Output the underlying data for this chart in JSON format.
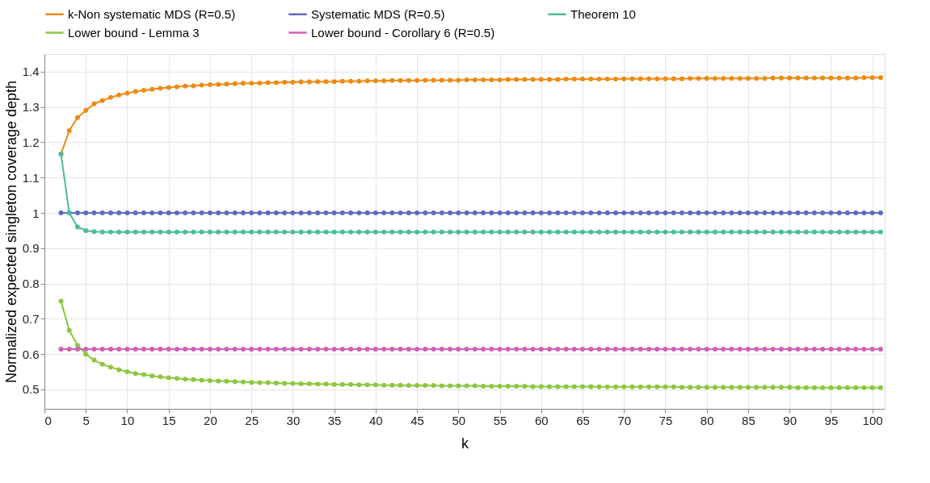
{
  "chart_data": {
    "type": "line",
    "xlabel": "k",
    "ylabel": "Normalized expected singleton coverage depth",
    "x": [
      2,
      3,
      4,
      5,
      6,
      7,
      8,
      9,
      10,
      11,
      12,
      13,
      14,
      15,
      16,
      17,
      18,
      19,
      20,
      21,
      22,
      23,
      24,
      25,
      26,
      27,
      28,
      29,
      30,
      31,
      32,
      33,
      34,
      35,
      36,
      37,
      38,
      39,
      40,
      41,
      42,
      43,
      44,
      45,
      46,
      47,
      48,
      49,
      50,
      51,
      52,
      53,
      54,
      55,
      56,
      57,
      58,
      59,
      60,
      61,
      62,
      63,
      64,
      65,
      66,
      67,
      68,
      69,
      70,
      71,
      72,
      73,
      74,
      75,
      76,
      77,
      78,
      79,
      80,
      81,
      82,
      83,
      84,
      85,
      86,
      87,
      88,
      89,
      90,
      91,
      92,
      93,
      94,
      95,
      96,
      97,
      98,
      99,
      100,
      101
    ],
    "series": [
      {
        "name": "k-Non systematic MDS (R=0.5)",
        "color": "#ee8a12",
        "values": [
          1.167,
          1.233,
          1.27,
          1.29,
          1.309,
          1.318,
          1.327,
          1.334,
          1.339,
          1.344,
          1.347,
          1.35,
          1.353,
          1.355,
          1.357,
          1.359,
          1.36,
          1.362,
          1.363,
          1.364,
          1.365,
          1.366,
          1.367,
          1.367,
          1.368,
          1.369,
          1.369,
          1.37,
          1.37,
          1.371,
          1.371,
          1.372,
          1.372,
          1.372,
          1.373,
          1.373,
          1.373,
          1.374,
          1.374,
          1.374,
          1.375,
          1.375,
          1.375,
          1.375,
          1.376,
          1.376,
          1.376,
          1.376,
          1.376,
          1.377,
          1.377,
          1.377,
          1.377,
          1.377,
          1.378,
          1.378,
          1.378,
          1.378,
          1.378,
          1.378,
          1.378,
          1.379,
          1.379,
          1.379,
          1.379,
          1.379,
          1.379,
          1.379,
          1.38,
          1.38,
          1.38,
          1.38,
          1.38,
          1.38,
          1.38,
          1.38,
          1.381,
          1.381,
          1.381,
          1.381,
          1.381,
          1.381,
          1.381,
          1.381,
          1.381,
          1.381,
          1.382,
          1.382,
          1.382,
          1.382,
          1.382,
          1.382,
          1.382,
          1.382,
          1.382,
          1.382,
          1.382,
          1.383,
          1.383,
          1.383
        ]
      },
      {
        "name": "Systematic MDS (R=0.5)",
        "color": "#5c6bbf",
        "values": [
          1,
          1,
          1,
          1,
          1,
          1,
          1,
          1,
          1,
          1,
          1,
          1,
          1,
          1,
          1,
          1,
          1,
          1,
          1,
          1,
          1,
          1,
          1,
          1,
          1,
          1,
          1,
          1,
          1,
          1,
          1,
          1,
          1,
          1,
          1,
          1,
          1,
          1,
          1,
          1,
          1,
          1,
          1,
          1,
          1,
          1,
          1,
          1,
          1,
          1,
          1,
          1,
          1,
          1,
          1,
          1,
          1,
          1,
          1,
          1,
          1,
          1,
          1,
          1,
          1,
          1,
          1,
          1,
          1,
          1,
          1,
          1,
          1,
          1,
          1,
          1,
          1,
          1,
          1,
          1,
          1,
          1,
          1,
          1,
          1,
          1,
          1,
          1,
          1,
          1,
          1,
          1,
          1,
          1,
          1,
          1,
          1,
          1,
          1,
          1
        ]
      },
      {
        "name": "Theorem 10",
        "color": "#4cbd9c",
        "values": [
          1.167,
          1.0,
          0.96,
          0.95,
          0.947,
          0.946,
          0.946,
          0.946,
          0.946,
          0.946,
          0.946,
          0.946,
          0.946,
          0.946,
          0.946,
          0.946,
          0.946,
          0.946,
          0.946,
          0.946,
          0.946,
          0.946,
          0.946,
          0.946,
          0.946,
          0.946,
          0.946,
          0.946,
          0.946,
          0.946,
          0.946,
          0.946,
          0.946,
          0.946,
          0.946,
          0.946,
          0.946,
          0.946,
          0.946,
          0.946,
          0.946,
          0.946,
          0.946,
          0.946,
          0.946,
          0.946,
          0.946,
          0.946,
          0.946,
          0.946,
          0.946,
          0.946,
          0.946,
          0.946,
          0.946,
          0.946,
          0.946,
          0.946,
          0.946,
          0.946,
          0.946,
          0.946,
          0.946,
          0.946,
          0.946,
          0.946,
          0.946,
          0.946,
          0.946,
          0.946,
          0.946,
          0.946,
          0.946,
          0.946,
          0.946,
          0.946,
          0.946,
          0.946,
          0.946,
          0.946,
          0.946,
          0.946,
          0.946,
          0.946,
          0.946,
          0.946,
          0.946,
          0.946,
          0.946,
          0.946,
          0.946,
          0.946,
          0.946,
          0.946,
          0.946,
          0.946,
          0.946,
          0.946,
          0.946,
          0.946
        ]
      },
      {
        "name": "Lower bound - Lemma 3",
        "color": "#8dc63f",
        "values": [
          0.75,
          0.667,
          0.625,
          0.6,
          0.583,
          0.571,
          0.563,
          0.556,
          0.55,
          0.545,
          0.542,
          0.538,
          0.536,
          0.533,
          0.531,
          0.529,
          0.528,
          0.526,
          0.525,
          0.524,
          0.523,
          0.522,
          0.521,
          0.52,
          0.519,
          0.519,
          0.518,
          0.517,
          0.517,
          0.516,
          0.516,
          0.515,
          0.515,
          0.514,
          0.514,
          0.514,
          0.513,
          0.513,
          0.513,
          0.512,
          0.512,
          0.512,
          0.511,
          0.511,
          0.511,
          0.511,
          0.51,
          0.51,
          0.51,
          0.51,
          0.51,
          0.509,
          0.509,
          0.509,
          0.509,
          0.509,
          0.509,
          0.508,
          0.508,
          0.508,
          0.508,
          0.508,
          0.508,
          0.508,
          0.508,
          0.507,
          0.507,
          0.507,
          0.507,
          0.507,
          0.507,
          0.507,
          0.507,
          0.507,
          0.507,
          0.506,
          0.506,
          0.506,
          0.506,
          0.506,
          0.506,
          0.506,
          0.506,
          0.506,
          0.506,
          0.506,
          0.506,
          0.506,
          0.506,
          0.505,
          0.505,
          0.505,
          0.505,
          0.505,
          0.505,
          0.505,
          0.505,
          0.505,
          0.505,
          0.505
        ]
      },
      {
        "name": "Lower bound - Corollary 6 (R=0.5)",
        "color": "#d35fb5",
        "values": [
          0.614,
          0.614,
          0.614,
          0.614,
          0.614,
          0.614,
          0.614,
          0.614,
          0.614,
          0.614,
          0.614,
          0.614,
          0.614,
          0.614,
          0.614,
          0.614,
          0.614,
          0.614,
          0.614,
          0.614,
          0.614,
          0.614,
          0.614,
          0.614,
          0.614,
          0.614,
          0.614,
          0.614,
          0.614,
          0.614,
          0.614,
          0.614,
          0.614,
          0.614,
          0.614,
          0.614,
          0.614,
          0.614,
          0.614,
          0.614,
          0.614,
          0.614,
          0.614,
          0.614,
          0.614,
          0.614,
          0.614,
          0.614,
          0.614,
          0.614,
          0.614,
          0.614,
          0.614,
          0.614,
          0.614,
          0.614,
          0.614,
          0.614,
          0.614,
          0.614,
          0.614,
          0.614,
          0.614,
          0.614,
          0.614,
          0.614,
          0.614,
          0.614,
          0.614,
          0.614,
          0.614,
          0.614,
          0.614,
          0.614,
          0.614,
          0.614,
          0.614,
          0.614,
          0.614,
          0.614,
          0.614,
          0.614,
          0.614,
          0.614,
          0.614,
          0.614,
          0.614,
          0.614,
          0.614,
          0.614,
          0.614,
          0.614,
          0.614,
          0.614,
          0.614,
          0.614,
          0.614,
          0.614,
          0.614,
          0.614
        ]
      }
    ],
    "xlim": [
      0,
      101.5
    ],
    "xticks": [
      0,
      5,
      10,
      15,
      20,
      25,
      30,
      35,
      40,
      45,
      50,
      55,
      60,
      65,
      70,
      75,
      80,
      85,
      90,
      95,
      100
    ],
    "ylim": [
      0.445,
      1.45
    ],
    "yticks": [
      0.5,
      0.6,
      0.7,
      0.8,
      0.9,
      1,
      1.1,
      1.2,
      1.3,
      1.4
    ],
    "grid": true,
    "legend": "top",
    "marker": "circle",
    "line_style": "solid"
  }
}
